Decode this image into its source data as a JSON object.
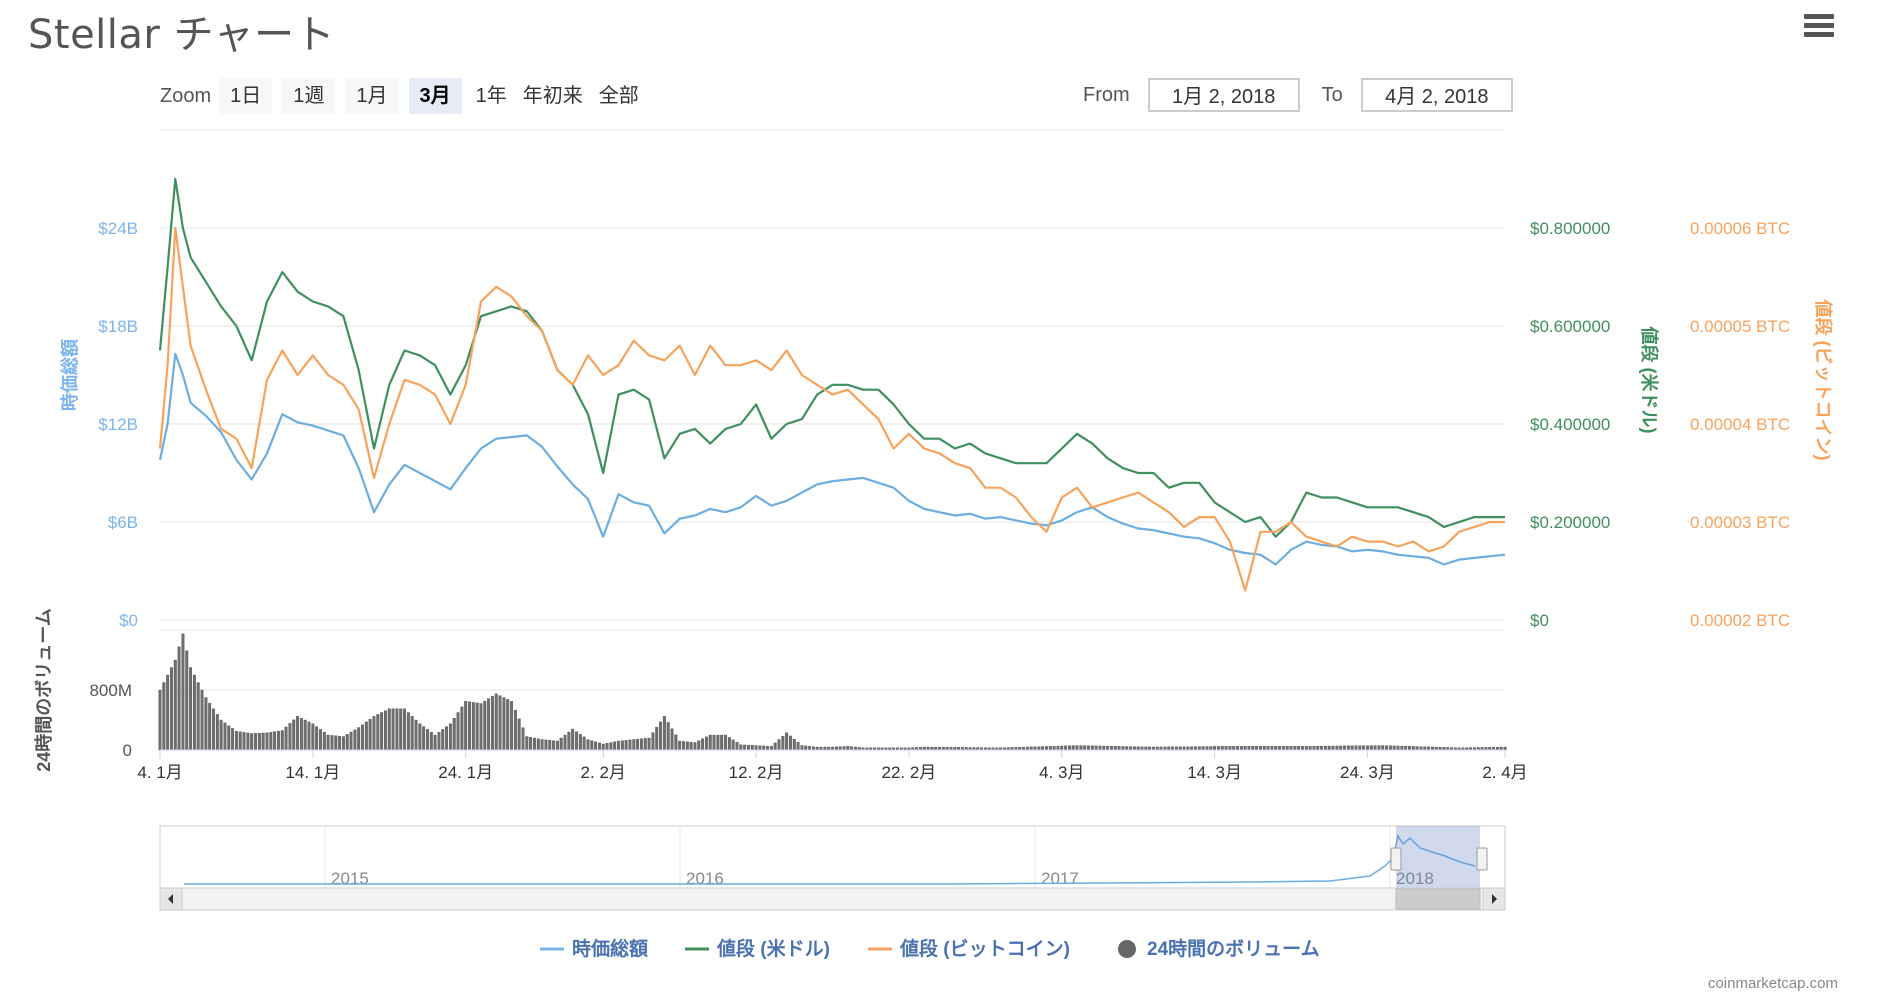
{
  "page": {
    "title": "Stellar チャート",
    "credit": "coinmarketcap.com"
  },
  "range_selector": {
    "zoom_label": "Zoom",
    "buttons": [
      "1日",
      "1週",
      "1月",
      "3月",
      "1年",
      "年初来",
      "全部"
    ],
    "active": "3月",
    "from_label": "From",
    "from_value": "1月 2, 2018",
    "to_label": "To",
    "to_value": "4月 2, 2018"
  },
  "chart_data": {
    "type": "line",
    "title": "Stellar チャート",
    "x_start": "2018-01-04",
    "x_end": "2018-04-02",
    "x_tick_labels": [
      "4. 1月",
      "14. 1月",
      "24. 1月",
      "2. 2月",
      "12. 2月",
      "22. 2月",
      "4. 3月",
      "14. 3月",
      "24. 3月",
      "2. 4月"
    ],
    "x_tick_days": [
      0,
      10,
      20,
      29,
      39,
      49,
      59,
      69,
      79,
      88
    ],
    "grid": true,
    "legend_position": "bottom-center",
    "y_axes": [
      {
        "name": "時価総額",
        "side": "left",
        "ticks": [
          "$0",
          "$6B",
          "$12B",
          "$18B",
          "$24B"
        ],
        "ylim": [
          0,
          24000000000
        ],
        "color": "#7cb5ec"
      },
      {
        "name": "値段 (米ドル)",
        "side": "right",
        "ticks": [
          "$0",
          "$0.200000",
          "$0.400000",
          "$0.600000",
          "$0.800000"
        ],
        "ylim": [
          0,
          0.8
        ],
        "color": "#3f8f5f"
      },
      {
        "name": "値段 (ビットコイン)",
        "side": "right",
        "ticks": [
          "0.00002 BTC",
          "0.00003 BTC",
          "0.00004 BTC",
          "0.00005 BTC",
          "0.00006 BTC"
        ],
        "ylim": [
          2e-05,
          6e-05
        ],
        "color": "#f7a35c"
      },
      {
        "name": "24時間のボリューム",
        "side": "left",
        "ticks": [
          "0",
          "800M"
        ],
        "ylim": [
          0,
          1600000000
        ],
        "color": "#555555"
      }
    ],
    "series": [
      {
        "name": "時価総額",
        "color": "#6caee0",
        "axis": 0,
        "x_days": [
          0,
          0.5,
          1,
          1.5,
          2,
          3,
          4,
          5,
          6,
          7,
          8,
          9,
          10,
          11,
          12,
          13,
          14,
          15,
          16,
          17,
          18,
          19,
          20,
          21,
          22,
          23,
          24,
          25,
          26,
          27,
          28,
          29,
          30,
          31,
          32,
          33,
          34,
          35,
          36,
          37,
          38,
          39,
          40,
          41,
          42,
          43,
          44,
          45,
          46,
          47,
          48,
          49,
          50,
          51,
          52,
          53,
          54,
          55,
          56,
          57,
          58,
          59,
          60,
          61,
          62,
          63,
          64,
          65,
          66,
          67,
          68,
          69,
          70,
          71,
          72,
          73,
          74,
          75,
          76,
          77,
          78,
          79,
          80,
          81,
          82,
          83,
          84,
          85,
          86,
          87,
          88
        ],
        "values": [
          9800000000.0,
          12000000000.0,
          16300000000.0,
          15000000000.0,
          13300000000.0,
          12500000000.0,
          11500000000.0,
          9800000000.0,
          8600000000.0,
          10200000000.0,
          12600000000.0,
          12100000000.0,
          11900000000.0,
          11600000000.0,
          11300000000.0,
          9300000000.0,
          6600000000.0,
          8300000000.0,
          9500000000.0,
          9000000000.0,
          8500000000.0,
          8000000000.0,
          9300000000.0,
          10500000000.0,
          11100000000.0,
          11200000000.0,
          11300000000.0,
          10600000000.0,
          9400000000.0,
          8300000000.0,
          7400000000.0,
          5100000000.0,
          7700000000.0,
          7200000000.0,
          7000000000.0,
          5300000000.0,
          6200000000.0,
          6400000000.0,
          6800000000.0,
          6600000000.0,
          6900000000.0,
          7600000000.0,
          7000000000.0,
          7300000000.0,
          7800000000.0,
          8300000000.0,
          8500000000.0,
          8600000000.0,
          8700000000.0,
          8400000000.0,
          8100000000.0,
          7300000000.0,
          6800000000.0,
          6600000000.0,
          6400000000.0,
          6500000000.0,
          6200000000.0,
          6300000000.0,
          6100000000.0,
          5900000000.0,
          5800000000.0,
          6100000000.0,
          6600000000.0,
          6900000000.0,
          6300000000.0,
          5900000000.0,
          5600000000.0,
          5500000000.0,
          5300000000.0,
          5100000000.0,
          5000000000.0,
          4700000000.0,
          4300000000.0,
          4100000000.0,
          4000000000.0,
          3400000000.0,
          4300000000.0,
          4800000000.0,
          4600000000.0,
          4500000000.0,
          4200000000.0,
          4300000000.0,
          4200000000.0,
          4000000000.0,
          3900000000.0,
          3800000000.0,
          3400000000.0,
          3700000000.0,
          3800000000.0,
          3900000000.0,
          4000000000.0
        ]
      },
      {
        "name": "値段 (米ドル)",
        "color": "#3f8f5f",
        "axis": 1,
        "x_days": [
          0,
          0.5,
          1,
          1.5,
          2,
          3,
          4,
          5,
          6,
          7,
          8,
          9,
          10,
          11,
          12,
          13,
          14,
          15,
          16,
          17,
          18,
          19,
          20,
          21,
          22,
          23,
          24,
          25,
          26,
          27,
          28,
          29,
          30,
          31,
          32,
          33,
          34,
          35,
          36,
          37,
          38,
          39,
          40,
          41,
          42,
          43,
          44,
          45,
          46,
          47,
          48,
          49,
          50,
          51,
          52,
          53,
          54,
          55,
          56,
          57,
          58,
          59,
          60,
          61,
          62,
          63,
          64,
          65,
          66,
          67,
          68,
          69,
          70,
          71,
          72,
          73,
          74,
          75,
          76,
          77,
          78,
          79,
          80,
          81,
          82,
          83,
          84,
          85,
          86,
          87,
          88
        ],
        "values": [
          0.55,
          0.72,
          0.9,
          0.8,
          0.74,
          0.69,
          0.64,
          0.6,
          0.53,
          0.65,
          0.71,
          0.67,
          0.65,
          0.64,
          0.62,
          0.51,
          0.35,
          0.48,
          0.55,
          0.54,
          0.52,
          0.46,
          0.52,
          0.62,
          0.63,
          0.64,
          0.63,
          0.59,
          0.51,
          0.48,
          0.42,
          0.3,
          0.46,
          0.47,
          0.45,
          0.33,
          0.38,
          0.39,
          0.36,
          0.39,
          0.4,
          0.44,
          0.37,
          0.4,
          0.41,
          0.46,
          0.48,
          0.48,
          0.47,
          0.47,
          0.44,
          0.4,
          0.37,
          0.37,
          0.35,
          0.36,
          0.34,
          0.33,
          0.32,
          0.32,
          0.32,
          0.35,
          0.38,
          0.36,
          0.33,
          0.31,
          0.3,
          0.3,
          0.27,
          0.28,
          0.28,
          0.24,
          0.22,
          0.2,
          0.21,
          0.17,
          0.2,
          0.26,
          0.25,
          0.25,
          0.24,
          0.23,
          0.23,
          0.23,
          0.22,
          0.21,
          0.19,
          0.2,
          0.21,
          0.21,
          0.21
        ]
      },
      {
        "name": "値段 (ビットコイン)",
        "color": "#f7a35c",
        "axis": 2,
        "x_days": [
          0,
          0.5,
          1,
          1.5,
          2,
          3,
          4,
          5,
          6,
          7,
          8,
          9,
          10,
          11,
          12,
          13,
          14,
          15,
          16,
          17,
          18,
          19,
          20,
          21,
          22,
          23,
          24,
          25,
          26,
          27,
          28,
          29,
          30,
          31,
          32,
          33,
          34,
          35,
          36,
          37,
          38,
          39,
          40,
          41,
          42,
          43,
          44,
          45,
          46,
          47,
          48,
          49,
          50,
          51,
          52,
          53,
          54,
          55,
          56,
          57,
          58,
          59,
          60,
          61,
          62,
          63,
          64,
          65,
          66,
          67,
          68,
          69,
          70,
          71,
          72,
          73,
          74,
          75,
          76,
          77,
          78,
          79,
          80,
          81,
          82,
          83,
          84,
          85,
          86,
          87,
          88
        ],
        "values": [
          3.75e-05,
          4.6e-05,
          6e-05,
          5.4e-05,
          4.8e-05,
          4.35e-05,
          3.95e-05,
          3.85e-05,
          3.55e-05,
          4.45e-05,
          4.75e-05,
          4.5e-05,
          4.7e-05,
          4.5e-05,
          4.4e-05,
          4.15e-05,
          3.45e-05,
          4e-05,
          4.45e-05,
          4.4e-05,
          4.3e-05,
          4e-05,
          4.4e-05,
          5.25e-05,
          5.4e-05,
          5.3e-05,
          5.1e-05,
          4.95e-05,
          4.55e-05,
          4.4e-05,
          4.7e-05,
          4.5e-05,
          4.6e-05,
          4.85e-05,
          4.7e-05,
          4.65e-05,
          4.8e-05,
          4.5e-05,
          4.8e-05,
          4.6e-05,
          4.6e-05,
          4.65e-05,
          4.55e-05,
          4.75e-05,
          4.5e-05,
          4.4e-05,
          4.3e-05,
          4.35e-05,
          4.2e-05,
          4.05e-05,
          3.75e-05,
          3.9e-05,
          3.75e-05,
          3.7e-05,
          3.6e-05,
          3.55e-05,
          3.35e-05,
          3.35e-05,
          3.25e-05,
          3.05e-05,
          2.9e-05,
          3.25e-05,
          3.35e-05,
          3.15e-05,
          3.2e-05,
          3.25e-05,
          3.3e-05,
          3.2e-05,
          3.1e-05,
          2.95e-05,
          3.05e-05,
          3.05e-05,
          2.8e-05,
          2.3e-05,
          2.9e-05,
          2.9e-05,
          3e-05,
          2.85e-05,
          2.8e-05,
          2.75e-05,
          2.85e-05,
          2.8e-05,
          2.8e-05,
          2.75e-05,
          2.8e-05,
          2.7e-05,
          2.75e-05,
          2.9e-05,
          2.95e-05,
          3e-05,
          3e-05
        ]
      },
      {
        "name": "24時間のボリューム",
        "color": "#555555",
        "axis": 3,
        "kind": "column",
        "x_days": [
          0,
          1,
          1.5,
          2,
          3,
          4,
          5,
          6,
          7,
          8,
          9,
          10,
          11,
          12,
          13,
          14,
          15,
          16,
          17,
          18,
          19,
          20,
          21,
          22,
          23,
          24,
          25,
          26,
          27,
          28,
          29,
          30,
          31,
          32,
          33,
          34,
          35,
          36,
          37,
          38,
          39,
          40,
          41,
          42,
          43,
          44,
          45,
          46,
          47,
          48,
          49,
          50,
          55,
          60,
          65,
          70,
          75,
          80,
          85,
          88
        ],
        "values": [
          800000000.0,
          1200000000.0,
          1550000000.0,
          1100000000.0,
          700000000.0,
          400000000.0,
          250000000.0,
          220000000.0,
          230000000.0,
          260000000.0,
          450000000.0,
          350000000.0,
          200000000.0,
          180000000.0,
          300000000.0,
          450000000.0,
          550000000.0,
          550000000.0,
          350000000.0,
          200000000.0,
          350000000.0,
          650000000.0,
          620000000.0,
          750000000.0,
          650000000.0,
          180000000.0,
          140000000.0,
          120000000.0,
          280000000.0,
          140000000.0,
          80000000.0,
          120000000.0,
          140000000.0,
          160000000.0,
          450000000.0,
          120000000.0,
          100000000.0,
          200000000.0,
          200000000.0,
          70000000.0,
          60000000.0,
          50000000.0,
          230000000.0,
          60000000.0,
          40000000.0,
          40000000.0,
          50000000.0,
          30000000.0,
          30000000.0,
          30000000.0,
          30000000.0,
          40000000.0,
          30000000.0,
          60000000.0,
          40000000.0,
          50000000.0,
          50000000.0,
          60000000.0,
          30000000.0,
          40000000.0
        ]
      }
    ],
    "navigator": {
      "year_labels": [
        "2015",
        "2016",
        "2017",
        "2018"
      ]
    }
  },
  "legend": {
    "items": [
      {
        "label": "時価総額",
        "color": "#7cb5ec",
        "marker": "line"
      },
      {
        "label": "値段 (米ドル)",
        "color": "#3f8f5f",
        "marker": "line"
      },
      {
        "label": "値段 (ビットコイン)",
        "color": "#f7a35c",
        "marker": "line"
      },
      {
        "label": "24時間のボリューム",
        "color": "#666666",
        "marker": "circle"
      }
    ]
  }
}
